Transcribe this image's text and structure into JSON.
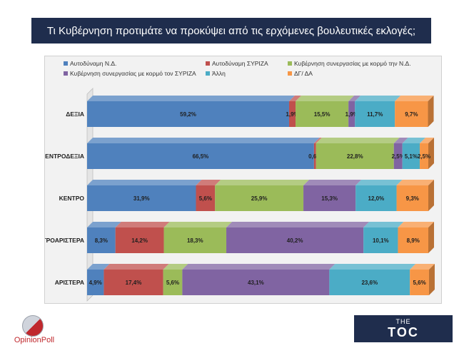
{
  "title": "Τι Κυβέρνηση προτιμάτε να προκύψει από τις ερχόμενες βουλευτικές εκλογές;",
  "logos": {
    "left": "OpinionPoll",
    "right_top": "THE",
    "right_main": "TOC"
  },
  "chart_data": {
    "type": "bar",
    "orientation": "horizontal",
    "stacked": true,
    "percent": true,
    "style": "3d",
    "categories": [
      "ΔΕΞΙΑ",
      "ΚΕΝΤΡΟΔΕΞΙΑ",
      "ΚΕΝΤΡΟ",
      "ΚΕΝΤΡΟΑΡΙΣΤΕΡΑ",
      "ΑΡΙΣΤΕΡΑ"
    ],
    "legend_position": "top",
    "xlim": [
      0,
      100
    ],
    "series": [
      {
        "name": "Αυτοδύναμη Ν.Δ.",
        "color": "#4f81bd",
        "values": [
          59.2,
          66.5,
          31.9,
          8.3,
          4.9
        ],
        "labels": [
          "59,2%",
          "66,5%",
          "31,9%",
          "8,3%",
          "4,9%"
        ]
      },
      {
        "name": "Αυτοδύναμη ΣΥΡΙΖΑ",
        "color": "#c0504d",
        "values": [
          1.9,
          0.6,
          5.6,
          14.2,
          17.4
        ],
        "labels": [
          "1,9%",
          "0,6%",
          "5,6%",
          "14,2%",
          "17,4%"
        ]
      },
      {
        "name": "Κυβέρνηση συνεργασίας με κορμό την Ν.Δ.",
        "color": "#9bbb59",
        "values": [
          15.5,
          22.8,
          25.9,
          18.3,
          5.6
        ],
        "labels": [
          "15,5%",
          "22,8%",
          "25,9%",
          "18,3%",
          "5,6%"
        ]
      },
      {
        "name": "Κυβέρνηση συνεργασίας με κορμό τον ΣΥΡΙΖΑ",
        "color": "#8064a2",
        "values": [
          1.9,
          2.5,
          15.3,
          40.2,
          43.1
        ],
        "labels": [
          "1,9%",
          "2,5%",
          "15,3%",
          "40,2%",
          "43,1%"
        ]
      },
      {
        "name": "Άλλη",
        "color": "#4bacc6",
        "values": [
          11.7,
          5.1,
          12.0,
          10.1,
          23.6
        ],
        "labels": [
          "11,7%",
          "5,1%",
          "12,0%",
          "10,1%",
          "23,6%"
        ]
      },
      {
        "name": "ΔΓ/ ΔΑ",
        "color": "#f79646",
        "values": [
          9.7,
          2.5,
          9.3,
          8.9,
          5.6
        ],
        "labels": [
          "9,7%",
          "2,5%",
          "9,3%",
          "8,9%",
          "5,6%"
        ]
      }
    ]
  }
}
